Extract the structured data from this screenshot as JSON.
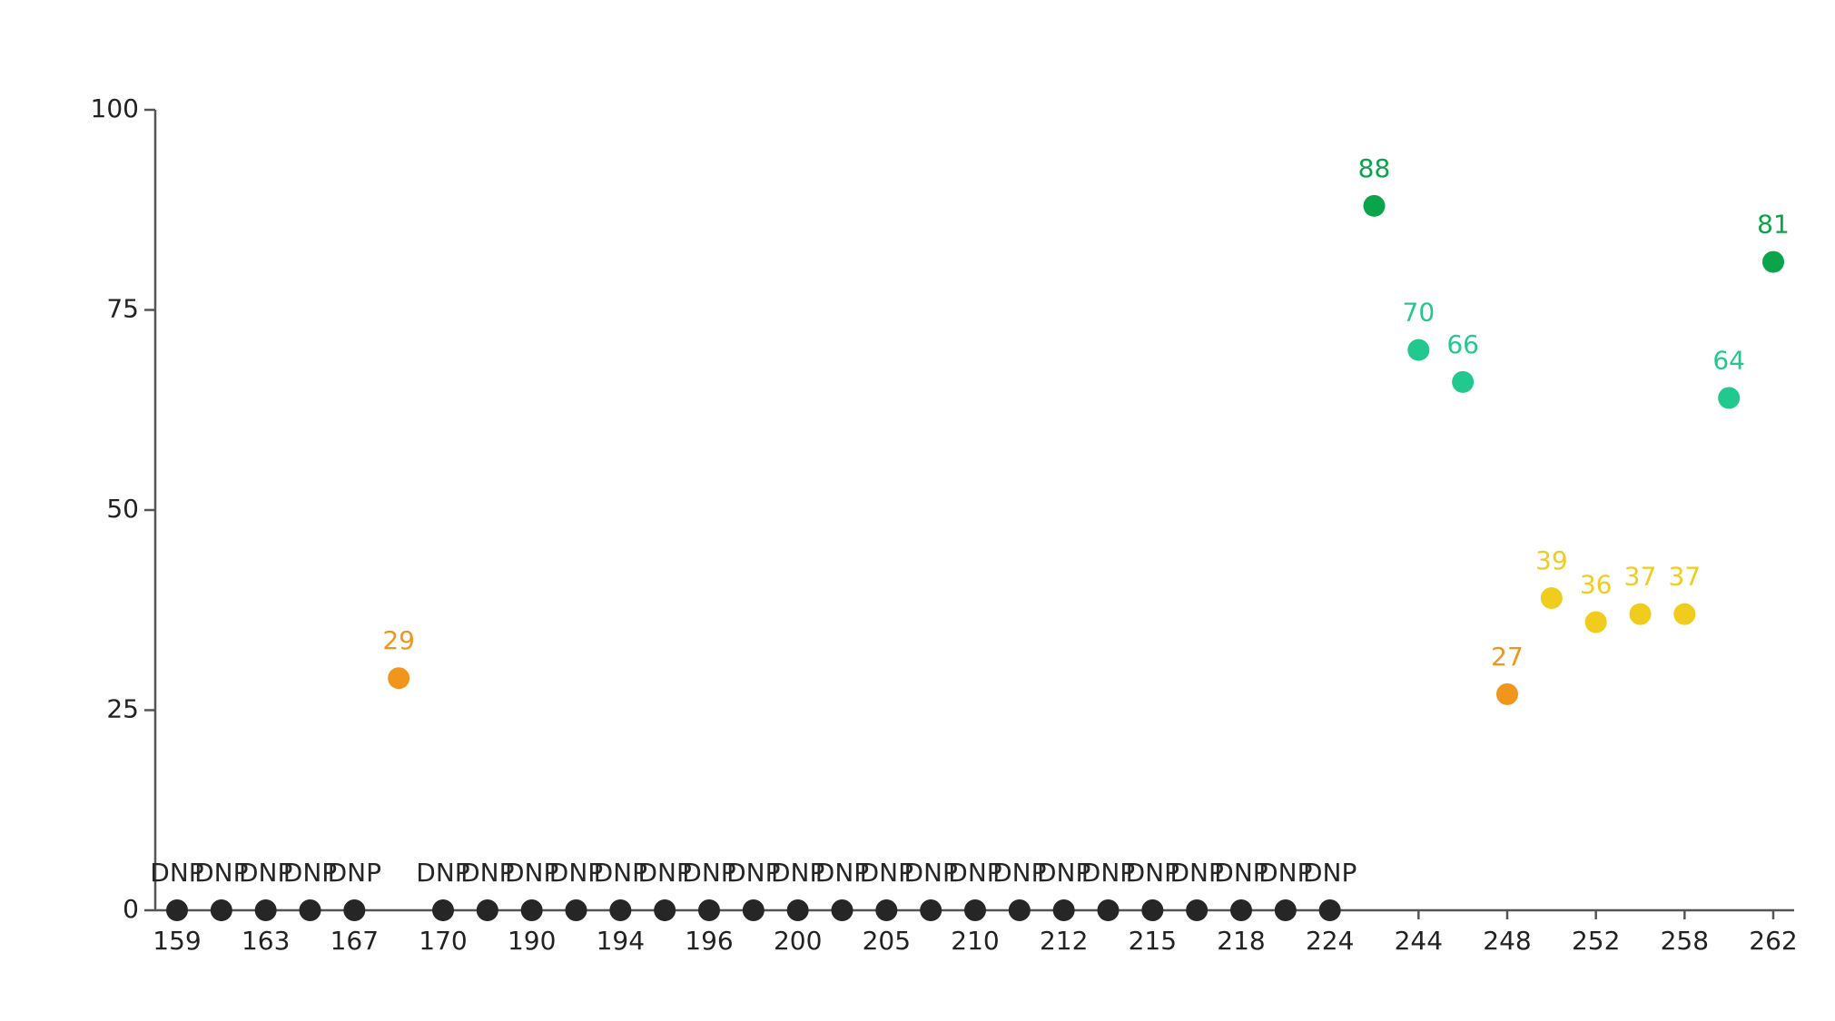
{
  "chart_data": {
    "type": "scatter",
    "categories": [
      159,
      null,
      163,
      null,
      167,
      null,
      170,
      null,
      190,
      null,
      194,
      null,
      196,
      null,
      200,
      null,
      205,
      null,
      210,
      null,
      212,
      null,
      215,
      null,
      218,
      null,
      224,
      null,
      244,
      null,
      248,
      null,
      252,
      null,
      258,
      null,
      262
    ],
    "values": [
      0,
      0,
      0,
      0,
      0,
      29,
      0,
      0,
      0,
      0,
      0,
      0,
      0,
      0,
      0,
      0,
      0,
      0,
      0,
      0,
      0,
      0,
      0,
      0,
      0,
      0,
      0,
      88,
      70,
      66,
      27,
      39,
      36,
      37,
      37,
      64,
      81
    ],
    "value_labels": [
      "DNP",
      "DNP",
      "DNP",
      "DNP",
      "DNP",
      "29",
      "DNP",
      "DNP",
      "DNP",
      "DNP",
      "DNP",
      "DNP",
      "DNP",
      "DNP",
      "DNP",
      "DNP",
      "DNP",
      "DNP",
      "DNP",
      "DNP",
      "DNP",
      "DNP",
      "DNP",
      "DNP",
      "DNP",
      "DNP",
      "DNP",
      "88",
      "70",
      "66",
      "27",
      "39",
      "36",
      "37",
      "37",
      "64",
      "81"
    ],
    "colors": [
      "#262626",
      "#262626",
      "#262626",
      "#262626",
      "#262626",
      "#f0961c",
      "#262626",
      "#262626",
      "#262626",
      "#262626",
      "#262626",
      "#262626",
      "#262626",
      "#262626",
      "#262626",
      "#262626",
      "#262626",
      "#262626",
      "#262626",
      "#262626",
      "#262626",
      "#262626",
      "#262626",
      "#262626",
      "#262626",
      "#262626",
      "#262626",
      "#0aa44a",
      "#22c98f",
      "#22c98f",
      "#f0961c",
      "#f0cc1c",
      "#f0cc1c",
      "#f0cc1c",
      "#f0cc1c",
      "#22c98f",
      "#0aa44a"
    ],
    "ylim": [
      0,
      100
    ],
    "yticks": [
      0,
      25,
      50,
      75,
      100
    ]
  }
}
